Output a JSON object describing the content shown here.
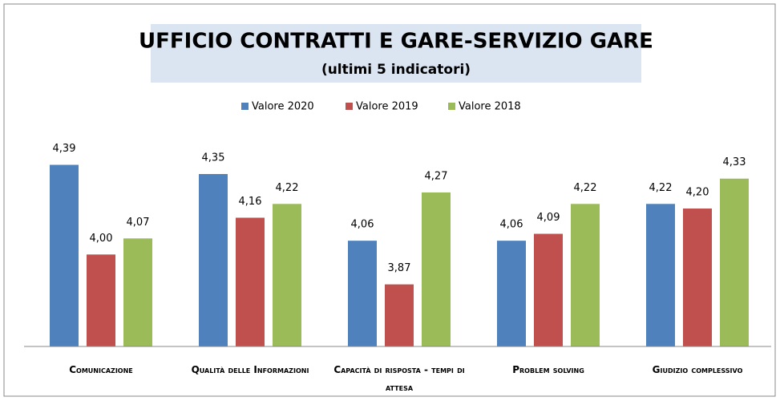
{
  "chart_data": {
    "type": "bar",
    "title": "UFFICIO CONTRATTI E GARE-SERVIZIO GARE",
    "subtitle": "(ultimi 5 indicatori)",
    "categories": [
      "Comunicazione",
      "Qualità delle Informazioni",
      "Capacità di risposta - tempi di attesa",
      "Problem solving",
      "Giudizio complessivo"
    ],
    "series": [
      {
        "name": "Valore 2020",
        "color": "#4f81bd",
        "values": [
          4.39,
          4.35,
          4.06,
          4.06,
          4.22
        ],
        "value_labels": [
          "4,39",
          "4,35",
          "4,06",
          "4,06",
          "4,22"
        ]
      },
      {
        "name": "Valore 2019",
        "color": "#c0504d",
        "values": [
          4.0,
          4.16,
          3.87,
          4.09,
          4.2
        ],
        "value_labels": [
          "4,00",
          "4,16",
          "3,87",
          "4,09",
          "4,20"
        ]
      },
      {
        "name": "Valore 2018",
        "color": "#9bbb59",
        "values": [
          4.07,
          4.22,
          4.27,
          4.22,
          4.33
        ],
        "value_labels": [
          "4,07",
          "4,22",
          "4,27",
          "4,22",
          "4,33"
        ]
      }
    ],
    "ylim": [
      3.6,
      4.5
    ],
    "legend": "top"
  }
}
